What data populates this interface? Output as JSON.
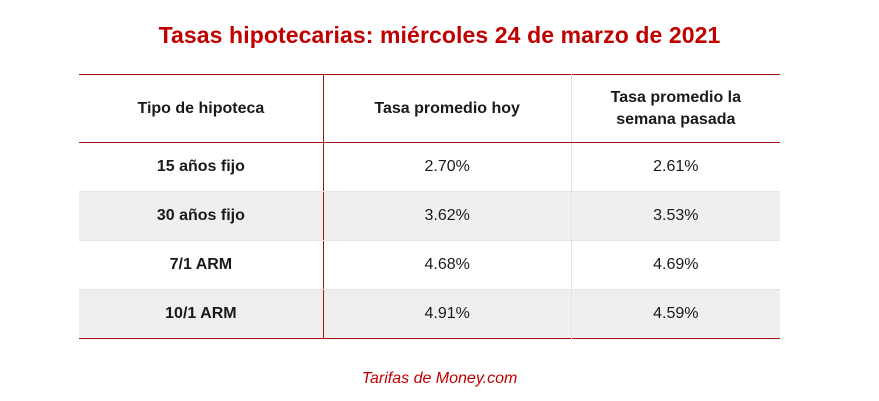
{
  "title": "Tasas hipotecarias: miércoles 24 de marzo de 2021",
  "table": {
    "headers": [
      "Tipo de hipoteca",
      "Tasa promedio hoy",
      "Tasa promedio la semana pasada"
    ],
    "rows": [
      {
        "type": "15 años fijo",
        "today": "2.70%",
        "last_week": "2.61%"
      },
      {
        "type": "30 años fijo",
        "today": "3.62%",
        "last_week": "3.53%"
      },
      {
        "type": "7/1 ARM",
        "today": "4.68%",
        "last_week": "4.69%"
      },
      {
        "type": "10/1 ARM",
        "today": "4.91%",
        "last_week": "4.59%"
      }
    ]
  },
  "source": "Tarifas de Money.com",
  "colors": {
    "accent": "#c00000",
    "rule": "#a31515",
    "stripe": "#efefef"
  }
}
